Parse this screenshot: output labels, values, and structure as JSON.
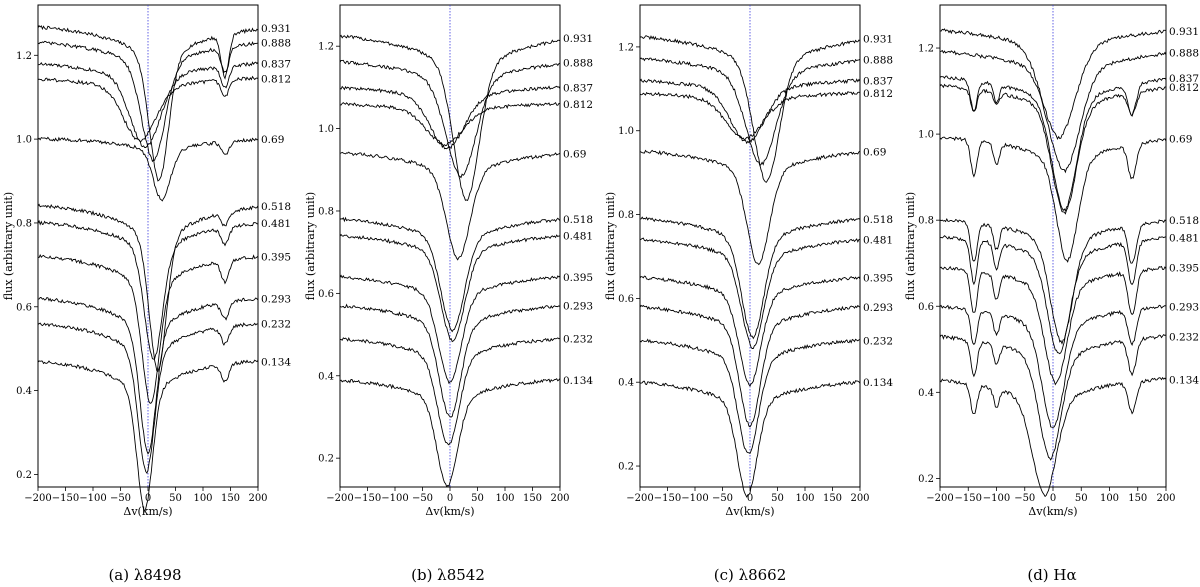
{
  "chart_data": [
    {
      "type": "line",
      "caption": "(a) λ8498",
      "xlabel": "Δv(km/s)",
      "ylabel": "flux (arbitrary unit)",
      "xlim": [
        -200,
        200
      ],
      "ylim": [
        0.17,
        1.32
      ],
      "xticks": [
        -200,
        -150,
        -100,
        -50,
        0,
        50,
        100,
        150,
        200
      ],
      "yticks": [
        0.2,
        0.4,
        0.6,
        0.8,
        1.0,
        1.2
      ],
      "reference_line_x": 0,
      "series": [
        {
          "phase": "0.931",
          "offset": 1.265,
          "center": 20,
          "depth": 0.28,
          "width": 45,
          "slope": 0.0,
          "notch": 0.1
        },
        {
          "phase": "0.888",
          "offset": 1.23,
          "center": 10,
          "depth": 0.22,
          "width": 55,
          "slope": 0.0,
          "notch": 0.06
        },
        {
          "phase": "0.837",
          "offset": 1.18,
          "center": -5,
          "depth": 0.16,
          "width": 70,
          "slope": 0.0,
          "notch": 0.05
        },
        {
          "phase": "0.812",
          "offset": 1.145,
          "center": -15,
          "depth": 0.12,
          "width": 75,
          "slope": 0.0,
          "notch": 0.04
        },
        {
          "phase": "0.69",
          "offset": 1.0,
          "center": 25,
          "depth": 0.11,
          "width": 40,
          "slope": 0.0,
          "notch": 0.03
        },
        {
          "phase": "0.518",
          "offset": 0.84,
          "center": 18,
          "depth": 0.3,
          "width": 40,
          "slope": 0.0,
          "notch": 0.03
        },
        {
          "phase": "0.481",
          "offset": 0.8,
          "center": 10,
          "depth": 0.25,
          "width": 42,
          "slope": 0.0,
          "notch": 0.04
        },
        {
          "phase": "0.395",
          "offset": 0.72,
          "center": 5,
          "depth": 0.27,
          "width": 40,
          "slope": 0.0,
          "notch": 0.05
        },
        {
          "phase": "0.293",
          "offset": 0.62,
          "center": 0,
          "depth": 0.28,
          "width": 38,
          "slope": 0.0,
          "notch": 0.04
        },
        {
          "phase": "0.232",
          "offset": 0.56,
          "center": -3,
          "depth": 0.27,
          "width": 38,
          "slope": 0.0,
          "notch": 0.04
        },
        {
          "phase": "0.134",
          "offset": 0.47,
          "center": -6,
          "depth": 0.27,
          "width": 36,
          "slope": 0.0,
          "notch": 0.04
        }
      ]
    },
    {
      "type": "line",
      "caption": "(b) λ8542",
      "xlabel": "Δv(km/s)",
      "ylabel": "flux (arbitrary unit)",
      "xlim": [
        -200,
        200
      ],
      "ylim": [
        0.13,
        1.3
      ],
      "xticks": [
        -200,
        -150,
        -100,
        -50,
        0,
        50,
        100,
        150,
        200
      ],
      "yticks": [
        0.2,
        0.4,
        0.6,
        0.8,
        1.0,
        1.2
      ],
      "reference_line_x": 0,
      "series": [
        {
          "phase": "0.931",
          "offset": 1.22,
          "center": 30,
          "depth": 0.31,
          "width": 60,
          "slope": 0.0,
          "notch": 0.0
        },
        {
          "phase": "0.888",
          "offset": 1.16,
          "center": 20,
          "depth": 0.22,
          "width": 70,
          "slope": 0.0,
          "notch": 0.0
        },
        {
          "phase": "0.837",
          "offset": 1.1,
          "center": -5,
          "depth": 0.12,
          "width": 80,
          "slope": 0.0,
          "notch": 0.0
        },
        {
          "phase": "0.812",
          "offset": 1.06,
          "center": -10,
          "depth": 0.08,
          "width": 85,
          "slope": 0.0,
          "notch": 0.0
        },
        {
          "phase": "0.69",
          "offset": 0.94,
          "center": 15,
          "depth": 0.2,
          "width": 55,
          "slope": 0.0,
          "notch": 0.0
        },
        {
          "phase": "0.518",
          "offset": 0.78,
          "center": 5,
          "depth": 0.21,
          "width": 55,
          "slope": 0.0,
          "notch": 0.0
        },
        {
          "phase": "0.481",
          "offset": 0.74,
          "center": 5,
          "depth": 0.2,
          "width": 55,
          "slope": 0.0,
          "notch": 0.0
        },
        {
          "phase": "0.395",
          "offset": 0.64,
          "center": 0,
          "depth": 0.2,
          "width": 52,
          "slope": 0.0,
          "notch": 0.0
        },
        {
          "phase": "0.293",
          "offset": 0.57,
          "center": 0,
          "depth": 0.21,
          "width": 50,
          "slope": 0.0,
          "notch": 0.0
        },
        {
          "phase": "0.232",
          "offset": 0.49,
          "center": -3,
          "depth": 0.2,
          "width": 50,
          "slope": 0.0,
          "notch": 0.0
        },
        {
          "phase": "0.134",
          "offset": 0.39,
          "center": -5,
          "depth": 0.2,
          "width": 48,
          "slope": 0.0,
          "notch": 0.0
        }
      ]
    },
    {
      "type": "line",
      "caption": "(c) λ8662",
      "xlabel": "Δv(km/s)",
      "ylabel": "flux (arbitrary unit)",
      "xlim": [
        -200,
        200
      ],
      "ylim": [
        0.15,
        1.3
      ],
      "xticks": [
        -200,
        -150,
        -100,
        -50,
        0,
        50,
        100,
        150,
        200
      ],
      "yticks": [
        0.2,
        0.4,
        0.6,
        0.8,
        1.0,
        1.2
      ],
      "reference_line_x": 0,
      "series": [
        {
          "phase": "0.931",
          "offset": 1.22,
          "center": 30,
          "depth": 0.27,
          "width": 60,
          "slope": 0.0,
          "notch": 0.0
        },
        {
          "phase": "0.888",
          "offset": 1.17,
          "center": 20,
          "depth": 0.2,
          "width": 70,
          "slope": 0.0,
          "notch": 0.0
        },
        {
          "phase": "0.837",
          "offset": 1.12,
          "center": -5,
          "depth": 0.12,
          "width": 80,
          "slope": 0.0,
          "notch": 0.0
        },
        {
          "phase": "0.812",
          "offset": 1.09,
          "center": -10,
          "depth": 0.09,
          "width": 85,
          "slope": 0.0,
          "notch": 0.0
        },
        {
          "phase": "0.69",
          "offset": 0.95,
          "center": 15,
          "depth": 0.21,
          "width": 52,
          "slope": 0.0,
          "notch": 0.0
        },
        {
          "phase": "0.518",
          "offset": 0.79,
          "center": 5,
          "depth": 0.22,
          "width": 52,
          "slope": 0.0,
          "notch": 0.0
        },
        {
          "phase": "0.481",
          "offset": 0.74,
          "center": 5,
          "depth": 0.2,
          "width": 52,
          "slope": 0.0,
          "notch": 0.0
        },
        {
          "phase": "0.395",
          "offset": 0.65,
          "center": 0,
          "depth": 0.2,
          "width": 50,
          "slope": 0.0,
          "notch": 0.0
        },
        {
          "phase": "0.293",
          "offset": 0.58,
          "center": 0,
          "depth": 0.22,
          "width": 48,
          "slope": 0.0,
          "notch": 0.0
        },
        {
          "phase": "0.232",
          "offset": 0.5,
          "center": -3,
          "depth": 0.21,
          "width": 48,
          "slope": 0.0,
          "notch": 0.0
        },
        {
          "phase": "0.134",
          "offset": 0.4,
          "center": -5,
          "depth": 0.21,
          "width": 46,
          "slope": 0.0,
          "notch": 0.0
        }
      ]
    },
    {
      "type": "line",
      "caption": "(d) Hα",
      "xlabel": "Δv(km/s)",
      "ylabel": "flux (arbitrary unit)",
      "xlim": [
        -200,
        200
      ],
      "ylim": [
        0.18,
        1.3
      ],
      "xticks": [
        -200,
        -150,
        -100,
        -50,
        0,
        50,
        100,
        150,
        200
      ],
      "yticks": [
        0.2,
        0.4,
        0.6,
        0.8,
        1.0,
        1.2
      ],
      "reference_line_x": 0,
      "series": [
        {
          "phase": "0.931",
          "offset": 1.24,
          "center": 10,
          "depth": 0.2,
          "width": 75,
          "slope": 0.0,
          "notch": 0.0
        },
        {
          "phase": "0.888",
          "offset": 1.19,
          "center": 20,
          "depth": 0.22,
          "width": 70,
          "slope": 0.0,
          "notch": 0.0
        },
        {
          "phase": "0.837",
          "offset": 1.13,
          "center": 20,
          "depth": 0.24,
          "width": 55,
          "slope": 0.0,
          "notch": 0.07
        },
        {
          "phase": "0.812",
          "offset": 1.11,
          "center": 20,
          "depth": 0.23,
          "width": 55,
          "slope": 0.0,
          "notch": 0.05
        },
        {
          "phase": "0.69",
          "offset": 0.99,
          "center": 25,
          "depth": 0.22,
          "width": 48,
          "slope": 0.0,
          "notch": 0.08
        },
        {
          "phase": "0.518",
          "offset": 0.8,
          "center": 15,
          "depth": 0.22,
          "width": 50,
          "slope": 0.0,
          "notch": 0.09
        },
        {
          "phase": "0.481",
          "offset": 0.76,
          "center": 10,
          "depth": 0.21,
          "width": 50,
          "slope": 0.0,
          "notch": 0.1
        },
        {
          "phase": "0.395",
          "offset": 0.69,
          "center": 5,
          "depth": 0.21,
          "width": 50,
          "slope": 0.0,
          "notch": 0.1
        },
        {
          "phase": "0.293",
          "offset": 0.6,
          "center": 0,
          "depth": 0.22,
          "width": 50,
          "slope": 0.0,
          "notch": 0.08
        },
        {
          "phase": "0.232",
          "offset": 0.53,
          "center": -5,
          "depth": 0.22,
          "width": 50,
          "slope": 0.0,
          "notch": 0.08
        },
        {
          "phase": "0.134",
          "offset": 0.43,
          "center": -15,
          "depth": 0.21,
          "width": 55,
          "slope": 0.0,
          "notch": 0.07
        }
      ]
    }
  ]
}
